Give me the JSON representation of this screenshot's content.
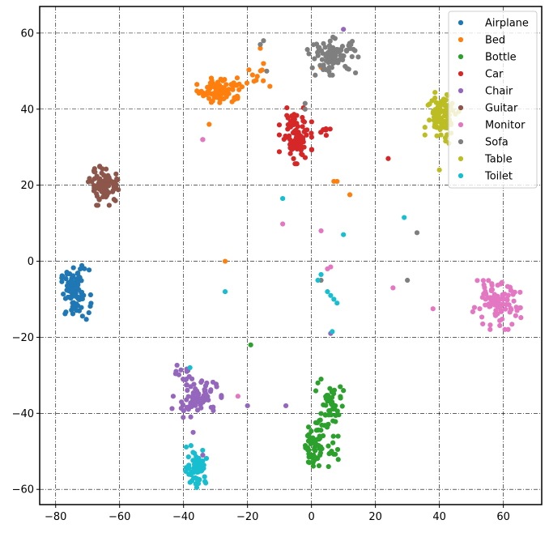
{
  "chart_data": {
    "type": "scatter",
    "title": "",
    "xlabel": "",
    "ylabel": "",
    "xlim": [
      -85,
      72
    ],
    "ylim": [
      -64,
      67
    ],
    "xticks": [
      -80,
      -60,
      -40,
      -20,
      0,
      20,
      40,
      60
    ],
    "yticks": [
      -60,
      -40,
      -20,
      0,
      20,
      40,
      60
    ],
    "xtick_labels": [
      "−80",
      "−60",
      "−40",
      "−20",
      "0",
      "20",
      "40",
      "60"
    ],
    "ytick_labels": [
      "−60",
      "−40",
      "−20",
      "0",
      "20",
      "40",
      "60"
    ],
    "grid": true,
    "legend_position": "top-right",
    "series": [
      {
        "name": "Airplane",
        "color": "#1f77b4",
        "clusters": [
          {
            "cx": -74,
            "cy": -8.5,
            "sx": 2.2,
            "sy": 3.2,
            "n": 90
          }
        ],
        "points": []
      },
      {
        "name": "Bed",
        "color": "#ff7f0e",
        "clusters": [
          {
            "cx": -28,
            "cy": 45,
            "sx": 3.4,
            "sy": 1.6,
            "n": 90
          },
          {
            "cx": -17,
            "cy": 49,
            "sx": 1.8,
            "sy": 1.2,
            "n": 8
          }
        ],
        "points": [
          [
            -32,
            36
          ],
          [
            -27,
            0
          ],
          [
            3,
            51
          ],
          [
            7,
            21
          ],
          [
            8,
            21
          ],
          [
            12,
            17.5
          ],
          [
            -16,
            56
          ],
          [
            -15,
            52
          ],
          [
            -13,
            46
          ]
        ]
      },
      {
        "name": "Bottle",
        "color": "#2ca02c",
        "clusters": [
          {
            "cx": 0.5,
            "cy": -48,
            "sx": 1.2,
            "sy": 3,
            "n": 60
          },
          {
            "cx": 5.5,
            "cy": -39,
            "sx": 1.8,
            "sy": 3,
            "n": 50
          },
          {
            "cx": 7,
            "cy": -50,
            "sx": 1.2,
            "sy": 2,
            "n": 12
          }
        ],
        "points": [
          [
            -19,
            -22
          ],
          [
            2,
            -32
          ],
          [
            3,
            -31
          ],
          [
            9,
            -33
          ],
          [
            10,
            -34
          ]
        ]
      },
      {
        "name": "Car",
        "color": "#d62728",
        "clusters": [
          {
            "cx": -5,
            "cy": 33,
            "sx": 2.2,
            "sy": 3.2,
            "n": 100
          },
          {
            "cx": 4,
            "cy": 34,
            "sx": 0.8,
            "sy": 0.8,
            "n": 8
          }
        ],
        "points": [
          [
            24,
            27
          ]
        ]
      },
      {
        "name": "Chair",
        "color": "#9467bd",
        "clusters": [
          {
            "cx": -36,
            "cy": -36,
            "sx": 3.4,
            "sy": 2.2,
            "n": 90
          },
          {
            "cx": -40,
            "cy": -30,
            "sx": 1.2,
            "sy": 1.2,
            "n": 12
          }
        ],
        "points": [
          [
            -34,
            32
          ],
          [
            -20,
            -38
          ],
          [
            -8,
            -38
          ],
          [
            10,
            61
          ],
          [
            6,
            -19
          ],
          [
            -37,
            -45
          ],
          [
            -36,
            -52
          ],
          [
            -34,
            -51
          ]
        ]
      },
      {
        "name": "Guitar",
        "color": "#8c564b",
        "clusters": [
          {
            "cx": -64.5,
            "cy": 20,
            "sx": 2.3,
            "sy": 2.3,
            "n": 90
          }
        ],
        "points": []
      },
      {
        "name": "Monitor",
        "color": "#e377c2",
        "clusters": [
          {
            "cx": 57.5,
            "cy": -11.5,
            "sx": 3.8,
            "sy": 2.8,
            "n": 90
          }
        ],
        "points": [
          [
            -34,
            32
          ],
          [
            -9,
            9.8
          ],
          [
            3,
            8
          ],
          [
            5,
            -2
          ],
          [
            6,
            -1.5
          ],
          [
            25.5,
            -7
          ],
          [
            38,
            -12.5
          ],
          [
            -23,
            -35.5
          ]
        ]
      },
      {
        "name": "Sofa",
        "color": "#7f7f7f",
        "clusters": [
          {
            "cx": 7,
            "cy": 54,
            "sx": 3.6,
            "sy": 2.2,
            "n": 90
          }
        ],
        "points": [
          [
            -16,
            57
          ],
          [
            -15,
            58
          ],
          [
            -14,
            50
          ],
          [
            -2,
            41.5
          ],
          [
            -2,
            40
          ],
          [
            3,
            -5
          ],
          [
            30,
            -5
          ],
          [
            33,
            7.5
          ]
        ]
      },
      {
        "name": "Table",
        "color": "#bcbd22",
        "clusters": [
          {
            "cx": 41,
            "cy": 38.5,
            "sx": 2.4,
            "sy": 3,
            "n": 90
          }
        ],
        "points": [
          [
            40,
            24
          ],
          [
            43,
            31
          ]
        ]
      },
      {
        "name": "Toilet",
        "color": "#17becf",
        "clusters": [
          {
            "cx": -36,
            "cy": -54,
            "sx": 1.5,
            "sy": 2.4,
            "n": 70
          }
        ],
        "points": [
          [
            -9,
            16.5
          ],
          [
            -27,
            -8
          ],
          [
            -38,
            -28
          ],
          [
            2,
            -5
          ],
          [
            3,
            -3.5
          ],
          [
            5,
            -8
          ],
          [
            6,
            -9
          ],
          [
            7,
            -10
          ],
          [
            8,
            -11
          ],
          [
            10,
            7
          ],
          [
            29,
            11.5
          ],
          [
            6.5,
            -18.5
          ]
        ]
      }
    ]
  }
}
